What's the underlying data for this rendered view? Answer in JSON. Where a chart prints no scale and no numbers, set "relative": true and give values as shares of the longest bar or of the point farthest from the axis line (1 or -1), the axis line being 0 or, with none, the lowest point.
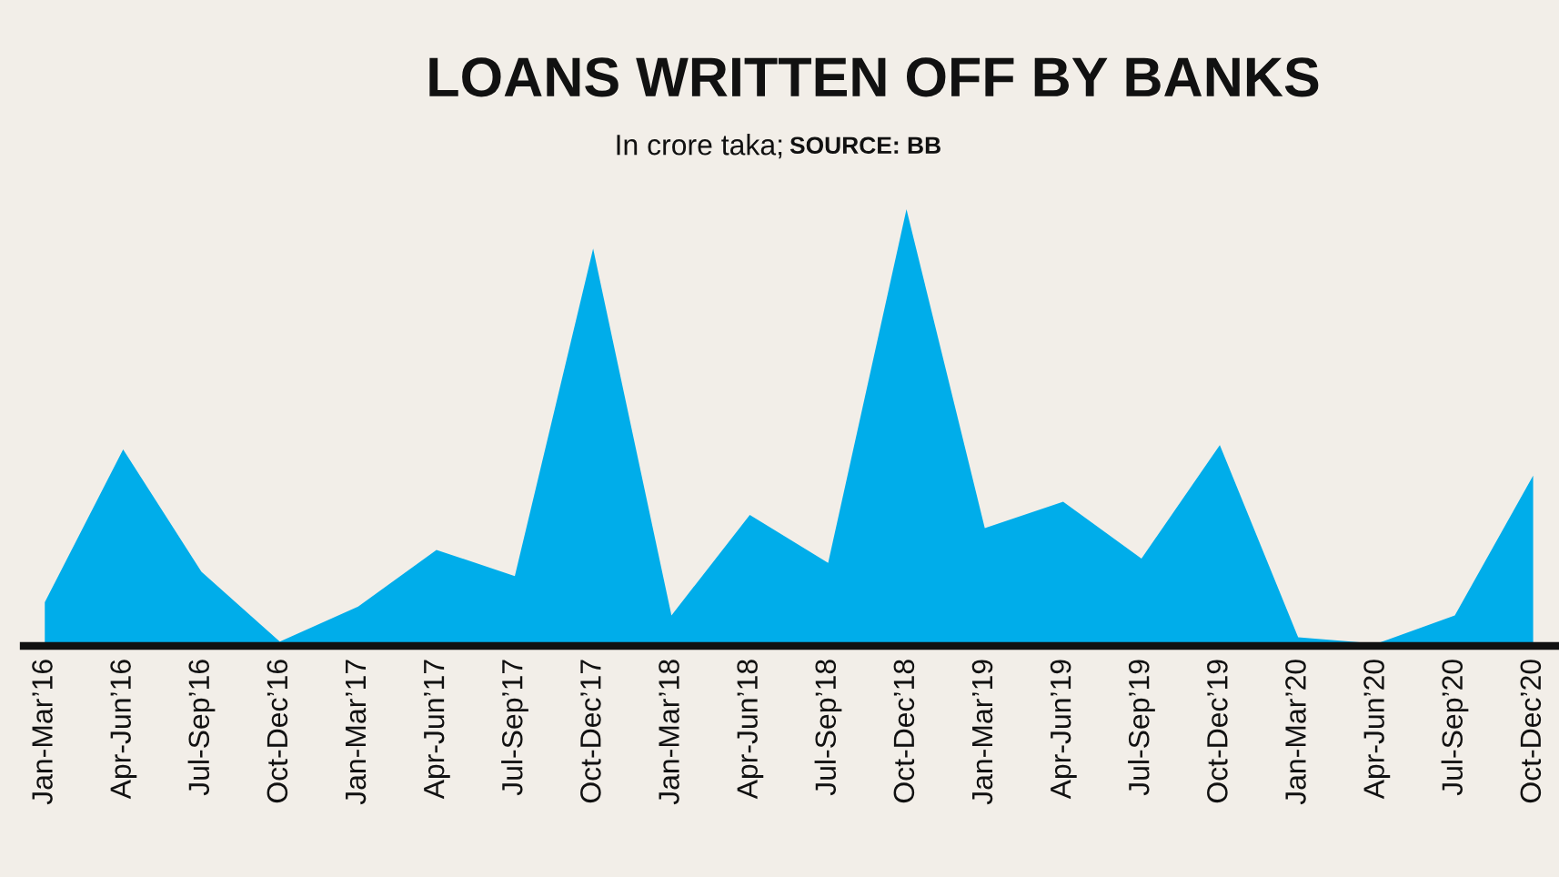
{
  "chart_data": {
    "type": "area",
    "title": "LOANS WRITTEN OFF BY BANKS",
    "subtitle": "In crore taka;",
    "annotations": [
      "SOURCE: BB"
    ],
    "categories": [
      "Jan-Mar’16",
      "Apr-Jun’16",
      "Jul-Sep’16",
      "Oct-Dec’16",
      "Jan-Mar’17",
      "Apr-Jun’17",
      "Jul-Sep’17",
      "Oct-Dec’17",
      "Jan-Mar’18",
      "Apr-Jun’18",
      "Jul-Sep’18",
      "Oct-Dec’18",
      "Jan-Mar’19",
      "Apr-Jun’19",
      "Jul-Sep’19",
      "Oct-Dec’19",
      "Jan-Mar’20",
      "Apr-Jun’20",
      "Jul-Sep’20",
      "Oct-Dec’20"
    ],
    "series": [
      {
        "color": "#00adea",
        "values": [
          0.1,
          0.45,
          0.17,
          0.01,
          0.09,
          0.22,
          0.16,
          0.91,
          0.07,
          0.3,
          0.19,
          1,
          0.27,
          0.33,
          0.2,
          0.46,
          0.02,
          0.005,
          0.07,
          0.39
        ]
      }
    ],
    "relative": true
  }
}
